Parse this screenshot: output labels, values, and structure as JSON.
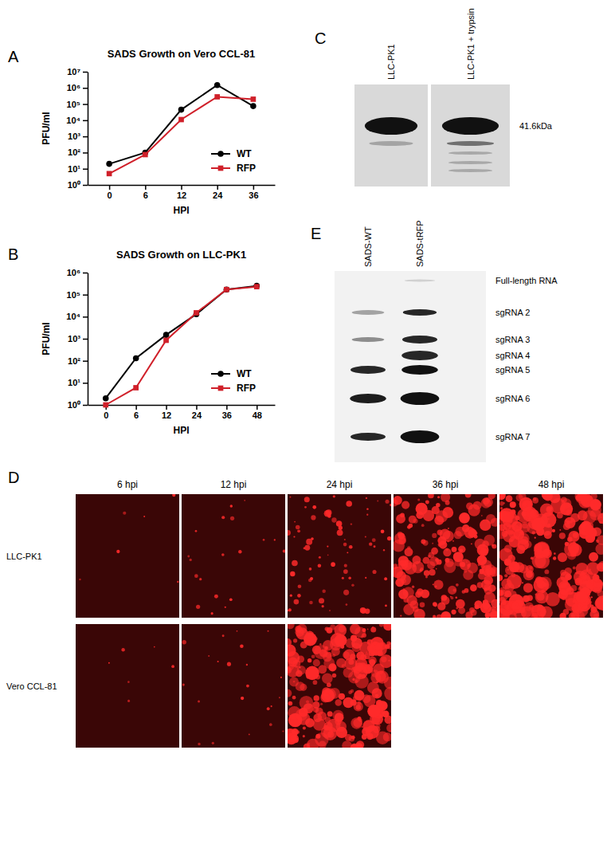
{
  "chart_data": [
    {
      "type": "line",
      "panel": "A",
      "title": "SADS Growth on Vero CCL-81",
      "x_label": "HPI",
      "y_label": "PFU/ml",
      "categories": [
        "0",
        "6",
        "12",
        "24",
        "36"
      ],
      "log": "y",
      "ylim": [
        1,
        10000000
      ],
      "yticks": [
        {
          "value": 1,
          "label": "10⁰"
        },
        {
          "value": 10,
          "label": "10¹"
        },
        {
          "value": 100,
          "label": "10²"
        },
        {
          "value": 1000,
          "label": "10³"
        },
        {
          "value": 10000,
          "label": "10⁴"
        },
        {
          "value": 100000,
          "label": "10⁵"
        },
        {
          "value": 1000000,
          "label": "10⁶"
        },
        {
          "value": 10000000,
          "label": "10⁷"
        }
      ],
      "legend": "lower right",
      "series": [
        {
          "name": "WT",
          "color": "#000000",
          "marker": "circle",
          "values": [
            20,
            100,
            45000,
            1500000,
            75000
          ]
        },
        {
          "name": "RFP",
          "color": "#d0202a",
          "marker": "square",
          "values": [
            5,
            75,
            11000,
            280000,
            200000
          ]
        }
      ]
    },
    {
      "type": "line",
      "panel": "B",
      "title": "SADS Growth on LLC-PK1",
      "x_label": "HPI",
      "y_label": "PFU/ml",
      "categories": [
        "0",
        "6",
        "12",
        "24",
        "36",
        "48"
      ],
      "log": "y",
      "ylim": [
        1,
        1000000
      ],
      "yticks": [
        {
          "value": 1,
          "label": "10⁰"
        },
        {
          "value": 10,
          "label": "10¹"
        },
        {
          "value": 100,
          "label": "10²"
        },
        {
          "value": 1000,
          "label": "10³"
        },
        {
          "value": 10000,
          "label": "10⁴"
        },
        {
          "value": 100000,
          "label": "10⁵"
        },
        {
          "value": 1000000,
          "label": "10⁶"
        }
      ],
      "legend": "lower right",
      "series": [
        {
          "name": "WT",
          "color": "#000000",
          "marker": "circle",
          "values": [
            2,
            130,
            1500,
            13000,
            170000,
            250000
          ]
        },
        {
          "name": "RFP",
          "color": "#d0202a",
          "marker": "square",
          "values": [
            1,
            6,
            850,
            15000,
            170000,
            230000
          ]
        }
      ]
    }
  ],
  "blot_c": {
    "panel": "C",
    "lanes": [
      "LLC-PK1",
      "LLC-PK1 + trypsin"
    ],
    "marker_label": "41.6kDa"
  },
  "images_d": {
    "panel": "D",
    "columns": [
      "6 hpi",
      "12 hpi",
      "24 hpi",
      "36 hpi",
      "48 hpi"
    ],
    "rows": [
      {
        "label": "LLC-PK1",
        "images": [
          true,
          true,
          true,
          true,
          true
        ]
      },
      {
        "label": "Vero CCL-81",
        "images": [
          true,
          true,
          true,
          false,
          false
        ]
      }
    ]
  },
  "blot_e": {
    "panel": "E",
    "lanes": [
      "SADS-WT",
      "SADS-tRFP"
    ],
    "bands": [
      "Full-length RNA",
      "sgRNA 2",
      "sgRNA 3",
      "sgRNA 4",
      "sgRNA 5",
      "sgRNA 6",
      "sgRNA 7"
    ]
  }
}
